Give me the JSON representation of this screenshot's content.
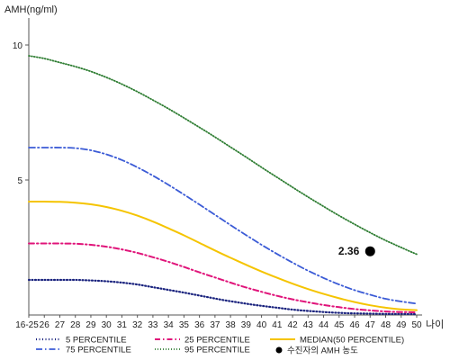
{
  "chart_data": {
    "type": "line",
    "ylabel": "AMH(ng/ml)",
    "xlabel": "나이",
    "ylim": [
      0,
      11
    ],
    "grid": false,
    "x": [
      "16-25",
      "26",
      "27",
      "28",
      "29",
      "30",
      "31",
      "32",
      "33",
      "34",
      "35",
      "36",
      "37",
      "38",
      "39",
      "40",
      "41",
      "42",
      "43",
      "44",
      "45",
      "46",
      "47",
      "48",
      "49",
      "50"
    ],
    "y_ticks": [
      {
        "value": 5,
        "label": "5"
      },
      {
        "value": 10,
        "label": "10"
      }
    ],
    "series": [
      {
        "name": "5 PERCENTILE",
        "color": "#1a237e",
        "dash": "1,2.5",
        "width": 2.2,
        "values": [
          1.3,
          1.3,
          1.3,
          1.3,
          1.28,
          1.25,
          1.2,
          1.13,
          1.03,
          0.93,
          0.83,
          0.72,
          0.61,
          0.51,
          0.42,
          0.34,
          0.27,
          0.2,
          0.15,
          0.11,
          0.08,
          0.06,
          0.05,
          0.04,
          0.04,
          0.03
        ]
      },
      {
        "name": "25 PERCENTILE",
        "color": "#e0147a",
        "dash": "6,3,1.5,3",
        "width": 2,
        "values": [
          2.65,
          2.65,
          2.65,
          2.64,
          2.6,
          2.53,
          2.43,
          2.3,
          2.14,
          1.97,
          1.78,
          1.58,
          1.39,
          1.2,
          1.02,
          0.86,
          0.71,
          0.58,
          0.47,
          0.37,
          0.29,
          0.22,
          0.17,
          0.13,
          0.11,
          0.1
        ]
      },
      {
        "name": "MEDIAN(50 PERCENTILE)",
        "color": "#f5c400",
        "dash": "",
        "width": 2,
        "values": [
          4.2,
          4.2,
          4.19,
          4.16,
          4.1,
          4.0,
          3.86,
          3.68,
          3.46,
          3.21,
          2.95,
          2.67,
          2.39,
          2.12,
          1.86,
          1.61,
          1.38,
          1.16,
          0.96,
          0.78,
          0.62,
          0.48,
          0.36,
          0.27,
          0.21,
          0.18
        ]
      },
      {
        "name": "75 PERCENTILE",
        "color": "#3b5bd6",
        "dash": "7,3,1.5,3",
        "width": 1.8,
        "values": [
          6.2,
          6.2,
          6.2,
          6.18,
          6.1,
          5.95,
          5.74,
          5.47,
          5.16,
          4.82,
          4.46,
          4.09,
          3.71,
          3.33,
          2.96,
          2.6,
          2.26,
          1.94,
          1.64,
          1.37,
          1.13,
          0.92,
          0.75,
          0.6,
          0.5,
          0.42
        ]
      },
      {
        "name": "95 PERCENTILE",
        "color": "#2e7d32",
        "dash": "1,2",
        "width": 1.8,
        "values": [
          9.6,
          9.5,
          9.35,
          9.2,
          9.02,
          8.8,
          8.55,
          8.27,
          7.96,
          7.64,
          7.3,
          6.95,
          6.59,
          6.22,
          5.85,
          5.47,
          5.1,
          4.73,
          4.37,
          4.02,
          3.68,
          3.36,
          3.05,
          2.76,
          2.5,
          2.25
        ]
      }
    ],
    "annotations": [
      {
        "type": "point",
        "x": "47",
        "y": 2.36,
        "label": "2.36",
        "color": "#000000"
      }
    ],
    "legend": {
      "position": "bottom",
      "marker_label": "수진자의 AMH 농도"
    }
  }
}
